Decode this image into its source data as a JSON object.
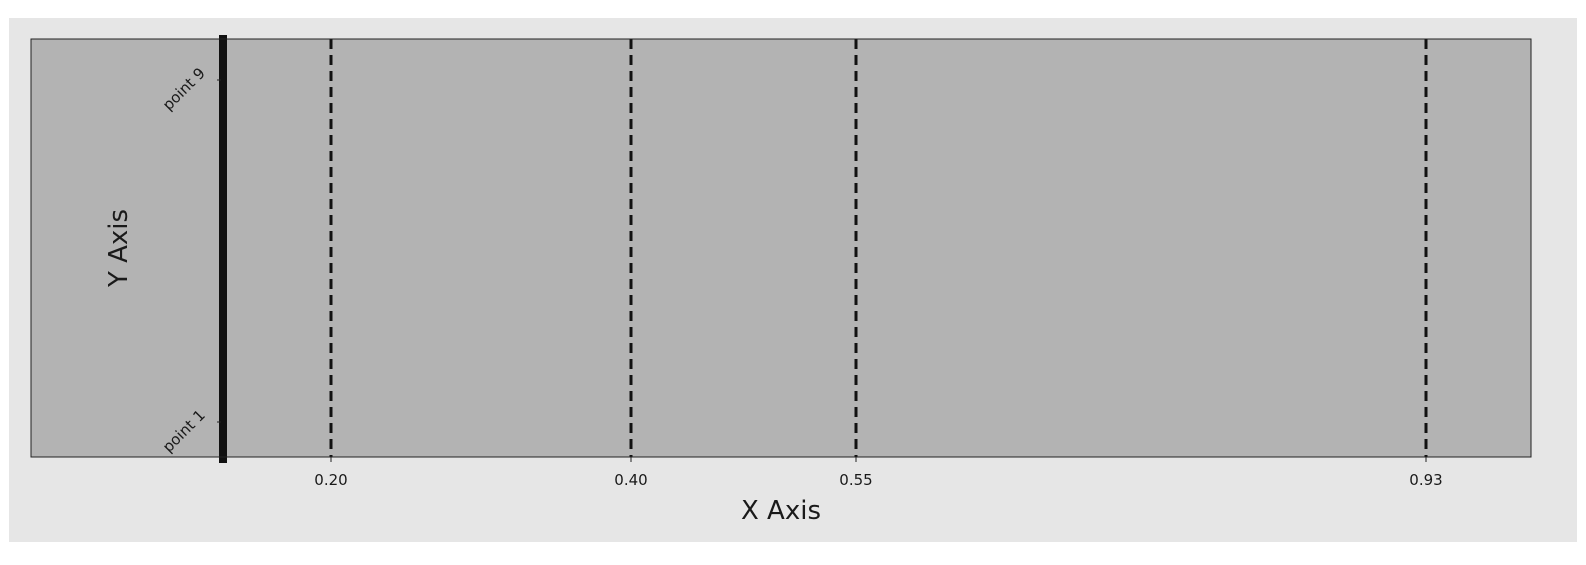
{
  "colors": {
    "figure_background": "#e6e6e6",
    "plot_background": "#b3b3b3",
    "line_color": "#111111"
  },
  "chart_data": {
    "type": "line",
    "title": "",
    "xlabel": "X Axis",
    "ylabel": "Y Axis",
    "xlim": [
      0.0,
      1.0
    ],
    "grid": false,
    "legend": "none",
    "x_ticks": [
      {
        "value": 0.2,
        "label": "0.20"
      },
      {
        "value": 0.4,
        "label": "0.40"
      },
      {
        "value": 0.55,
        "label": "0.55"
      },
      {
        "value": 0.93,
        "label": "0.93"
      }
    ],
    "y_ticks": [
      {
        "label": "point 1"
      },
      {
        "label": "point 9"
      }
    ],
    "vertical_lines": [
      {
        "x": 0.128,
        "style": "solid"
      },
      {
        "x": 0.2,
        "style": "dashed"
      },
      {
        "x": 0.4,
        "style": "dashed"
      },
      {
        "x": 0.55,
        "style": "dashed"
      },
      {
        "x": 0.93,
        "style": "dashed"
      }
    ]
  }
}
